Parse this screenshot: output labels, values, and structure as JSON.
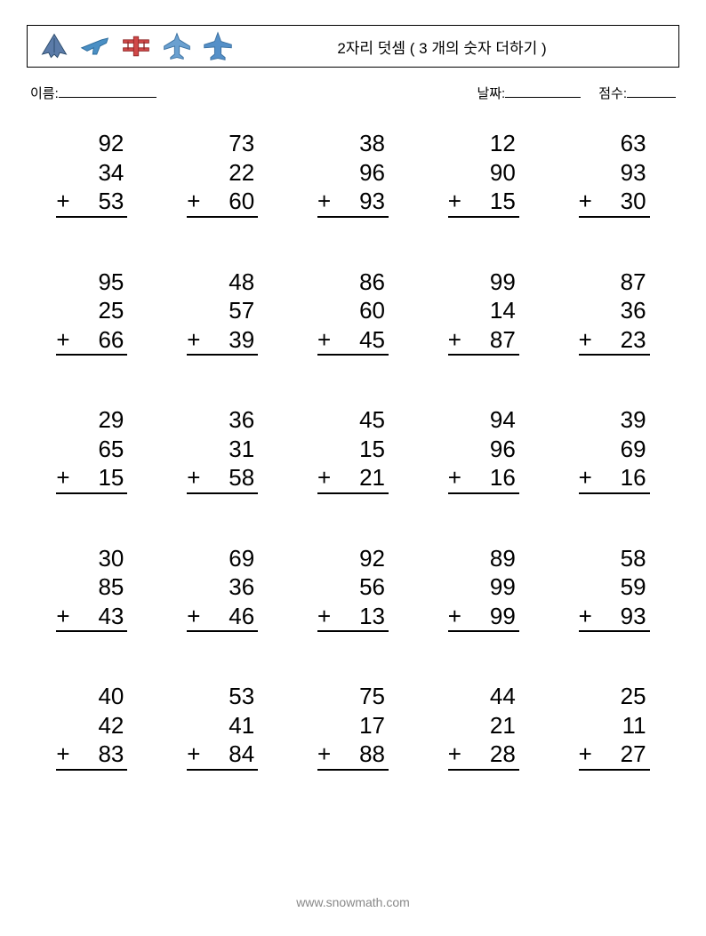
{
  "header": {
    "title": "2자리 덧셈 ( 3 개의 숫자 더하기 )"
  },
  "info": {
    "name_label": "이름:",
    "date_label": "날짜:",
    "score_label": "점수:"
  },
  "operator": "+",
  "problems": [
    {
      "a": "92",
      "b": "34",
      "c": "53"
    },
    {
      "a": "73",
      "b": "22",
      "c": "60"
    },
    {
      "a": "38",
      "b": "96",
      "c": "93"
    },
    {
      "a": "12",
      "b": "90",
      "c": "15"
    },
    {
      "a": "63",
      "b": "93",
      "c": "30"
    },
    {
      "a": "95",
      "b": "25",
      "c": "66"
    },
    {
      "a": "48",
      "b": "57",
      "c": "39"
    },
    {
      "a": "86",
      "b": "60",
      "c": "45"
    },
    {
      "a": "99",
      "b": "14",
      "c": "87"
    },
    {
      "a": "87",
      "b": "36",
      "c": "23"
    },
    {
      "a": "29",
      "b": "65",
      "c": "15"
    },
    {
      "a": "36",
      "b": "31",
      "c": "58"
    },
    {
      "a": "45",
      "b": "15",
      "c": "21"
    },
    {
      "a": "94",
      "b": "96",
      "c": "16"
    },
    {
      "a": "39",
      "b": "69",
      "c": "16"
    },
    {
      "a": "30",
      "b": "85",
      "c": "43"
    },
    {
      "a": "69",
      "b": "36",
      "c": "46"
    },
    {
      "a": "92",
      "b": "56",
      "c": "13"
    },
    {
      "a": "89",
      "b": "99",
      "c": "99"
    },
    {
      "a": "58",
      "b": "59",
      "c": "93"
    },
    {
      "a": "40",
      "b": "42",
      "c": "83"
    },
    {
      "a": "53",
      "b": "41",
      "c": "84"
    },
    {
      "a": "75",
      "b": "17",
      "c": "88"
    },
    {
      "a": "44",
      "b": "21",
      "c": "28"
    },
    {
      "a": "25",
      "b": "11",
      "c": "27"
    }
  ],
  "footer": {
    "url_prefix": "www.",
    "url_mid": "snow",
    "url_mid2": "math",
    "url_suffix": ".com"
  },
  "icon_colors": {
    "plane1": "#5b7ba8",
    "plane2": "#4a8fc4",
    "plane3": "#d04848",
    "plane4": "#6aa0d0",
    "plane5": "#5590c8"
  }
}
